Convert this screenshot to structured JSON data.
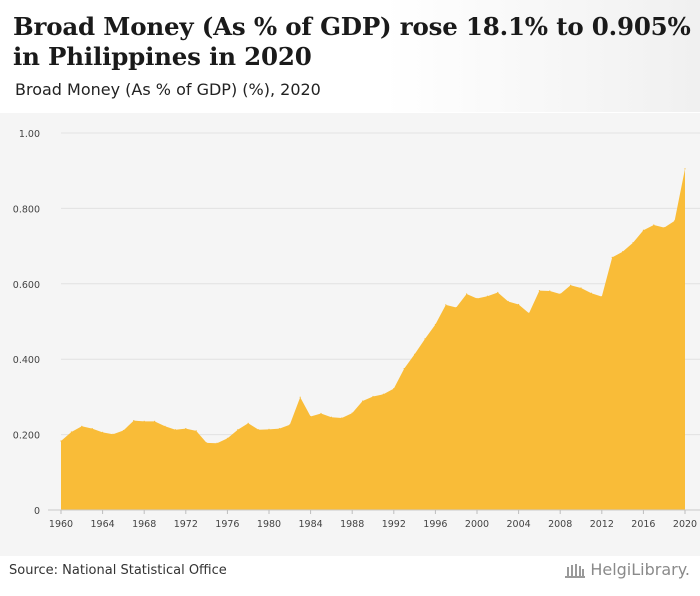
{
  "header": {
    "title": "Broad Money (As % of GDP) rose 18.1% to 0.905% in Philippines in 2020",
    "subtitle": "Broad Money (As % of GDP) (%), 2020"
  },
  "footer": {
    "source": "Source: National Statistical Office",
    "brand": "HelgiLibrary."
  },
  "colors": {
    "area_fill": "#f9bc38",
    "grid": "#e2e2e2",
    "plot_bg": "#f5f5f5"
  },
  "chart_data": {
    "type": "area",
    "title": "Broad Money (As % of GDP) rose 18.1% to 0.905% in Philippines in 2020",
    "subtitle": "Broad Money (As % of GDP) (%), 2020",
    "ylim": [
      0,
      1.0
    ],
    "y_ticks": [
      {
        "value": 0,
        "label": "0"
      },
      {
        "value": 0.2,
        "label": "0.200"
      },
      {
        "value": 0.4,
        "label": "0.400"
      },
      {
        "value": 0.6,
        "label": "0.600"
      },
      {
        "value": 0.8,
        "label": "0.800"
      },
      {
        "value": 1.0,
        "label": "1.00"
      }
    ],
    "x_ticks": [
      "1960",
      "1964",
      "1968",
      "1972",
      "1976",
      "1980",
      "1984",
      "1988",
      "1992",
      "1996",
      "2000",
      "2004",
      "2008",
      "2012",
      "2016",
      "2020"
    ],
    "grid": true,
    "legend": "none",
    "x": [
      1960,
      1961,
      1962,
      1963,
      1964,
      1965,
      1966,
      1967,
      1968,
      1969,
      1970,
      1971,
      1972,
      1973,
      1974,
      1975,
      1976,
      1977,
      1978,
      1979,
      1980,
      1981,
      1982,
      1983,
      1984,
      1985,
      1986,
      1987,
      1988,
      1989,
      1990,
      1991,
      1992,
      1993,
      1994,
      1995,
      1996,
      1997,
      1998,
      1999,
      2000,
      2001,
      2002,
      2003,
      2004,
      2005,
      2006,
      2007,
      2008,
      2009,
      2010,
      2011,
      2012,
      2013,
      2014,
      2015,
      2016,
      2017,
      2018,
      2019,
      2020
    ],
    "series": [
      {
        "values": [
          0.183,
          0.207,
          0.222,
          0.216,
          0.206,
          0.201,
          0.211,
          0.237,
          0.235,
          0.235,
          0.222,
          0.213,
          0.216,
          0.21,
          0.178,
          0.177,
          0.19,
          0.213,
          0.23,
          0.213,
          0.214,
          0.216,
          0.226,
          0.299,
          0.248,
          0.256,
          0.246,
          0.244,
          0.257,
          0.289,
          0.301,
          0.307,
          0.322,
          0.375,
          0.413,
          0.454,
          0.492,
          0.544,
          0.537,
          0.573,
          0.561,
          0.567,
          0.577,
          0.553,
          0.545,
          0.522,
          0.582,
          0.581,
          0.573,
          0.596,
          0.589,
          0.575,
          0.566,
          0.67,
          0.685,
          0.709,
          0.742,
          0.756,
          0.749,
          0.767,
          0.905
        ]
      }
    ]
  }
}
